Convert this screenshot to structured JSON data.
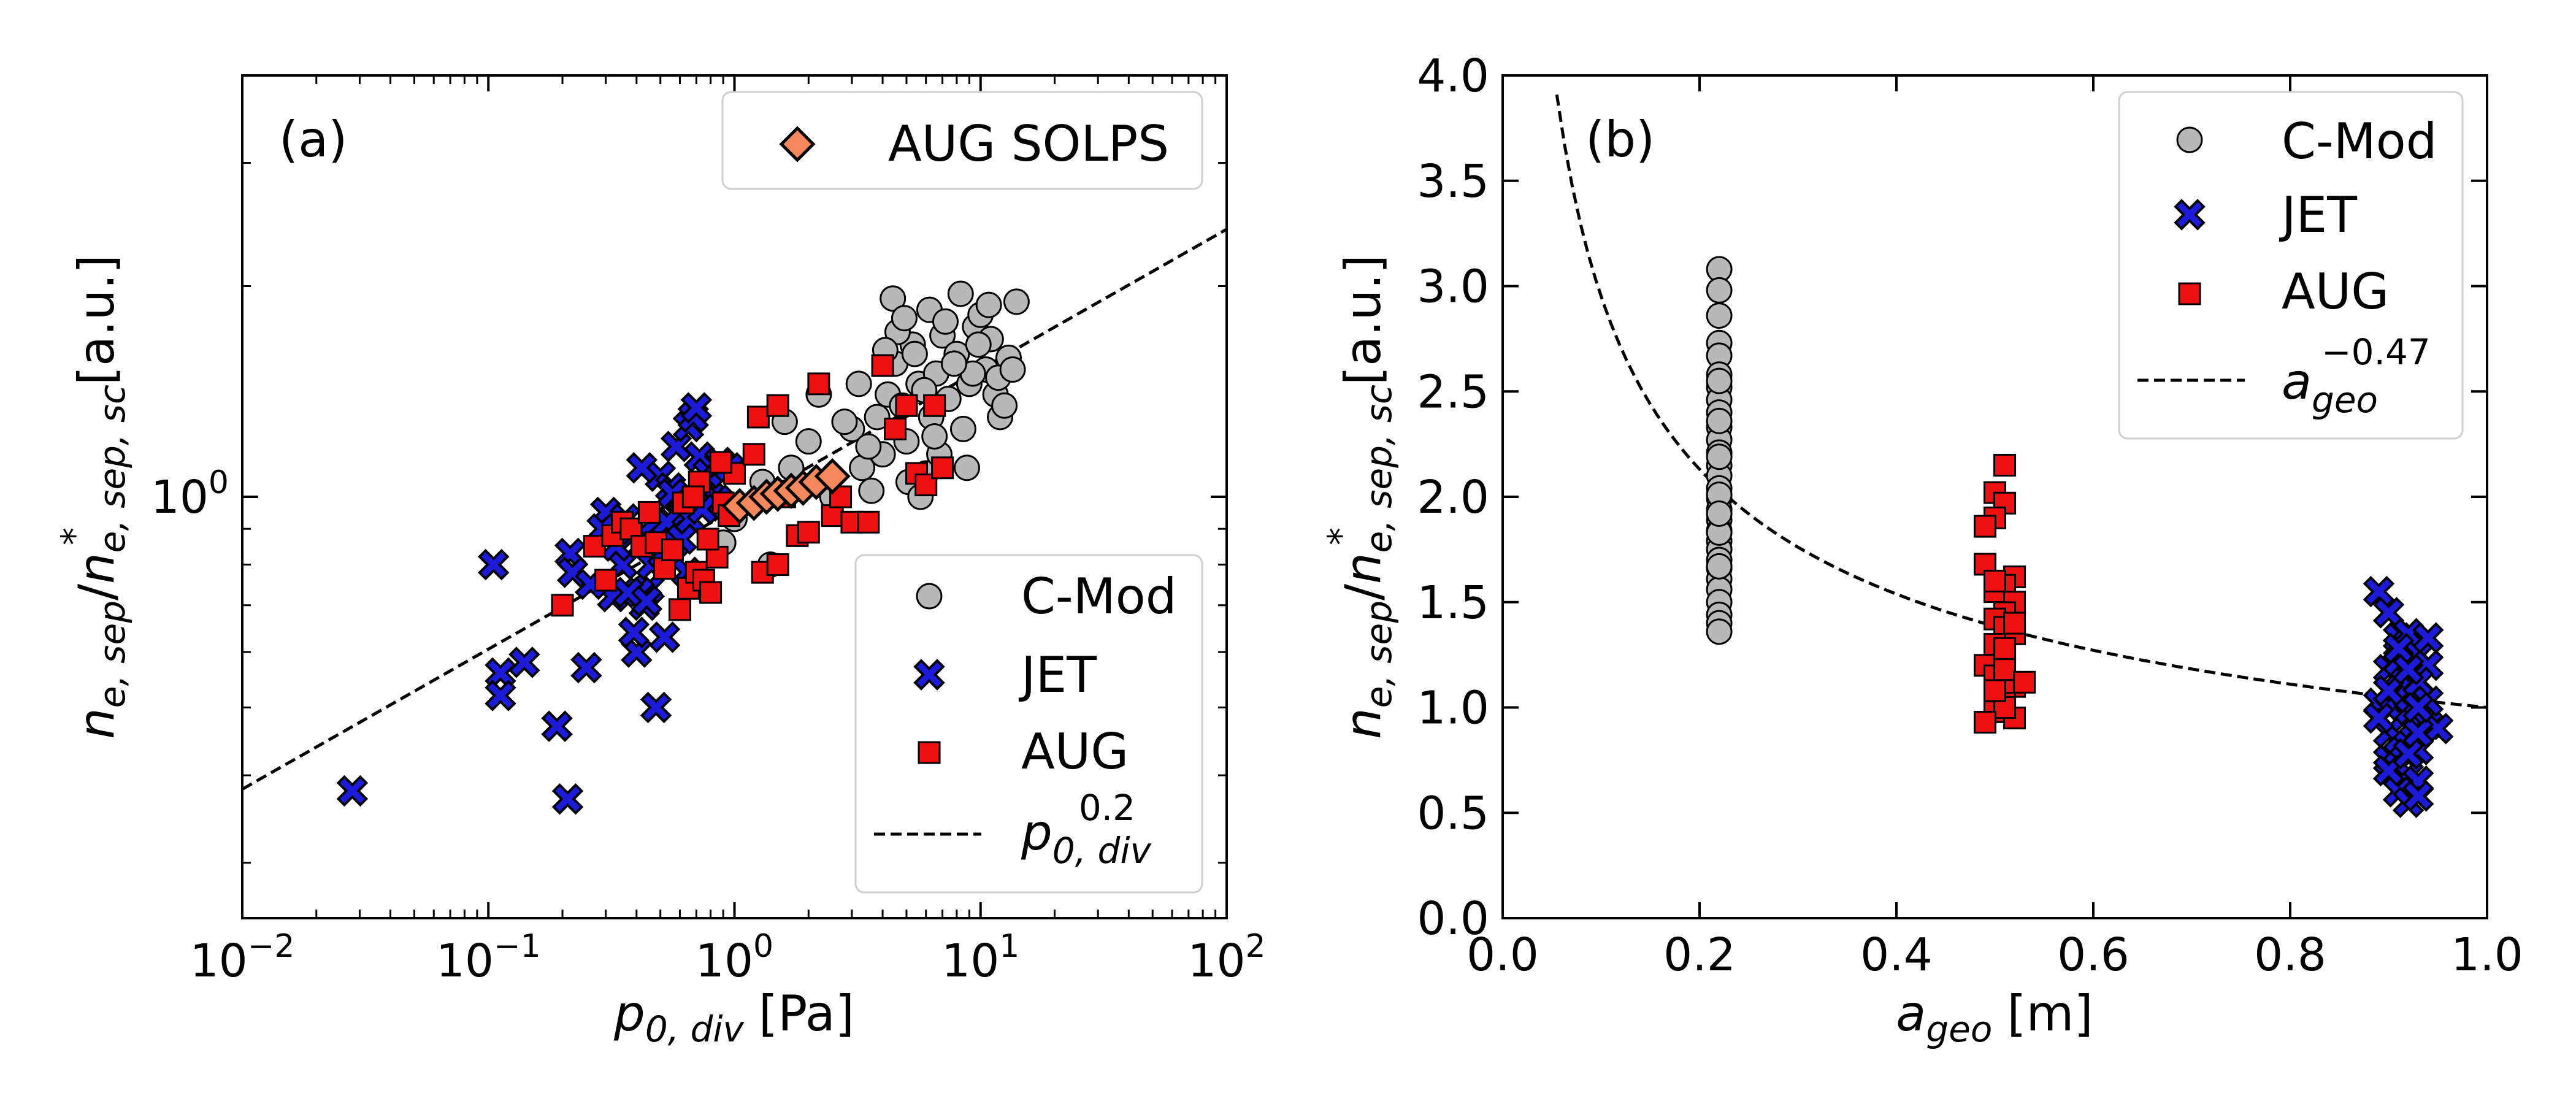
{
  "chart_data": [
    {
      "type": "scatter",
      "panel_label": "(a)",
      "xscale": "log",
      "yscale": "log",
      "xlim": [
        0.01,
        100
      ],
      "ylim": [
        0.25,
        4.0
      ],
      "xlabel": "p",
      "xlabel_sub": "0, div",
      "xlabel_unit": "[Pa]",
      "ylabel": "n",
      "ylabel_num_sub": "e, sep",
      "ylabel_den_sub": "e, sep, sc",
      "ylabel_unit": "[a.u.]",
      "x_ticks": [
        {
          "value": 0.01,
          "base": "10",
          "exp": "−2"
        },
        {
          "value": 0.1,
          "base": "10",
          "exp": "−1"
        },
        {
          "value": 1,
          "base": "10",
          "exp": "0"
        },
        {
          "value": 10,
          "base": "10",
          "exp": "1"
        },
        {
          "value": 100,
          "base": "10",
          "exp": "2"
        }
      ],
      "y_ticks": [
        {
          "value": 1.0,
          "base": "10",
          "exp": "0"
        }
      ],
      "legend_top": {
        "position": "top-right",
        "entries": [
          {
            "label": "AUG SOLPS",
            "marker": "diamond",
            "color": "#f4875c"
          }
        ]
      },
      "legend_bottom": {
        "position": "bottom-right",
        "entries": [
          {
            "label": "C-Mod",
            "marker": "circle",
            "color": "#b8b8b8"
          },
          {
            "label": "JET",
            "marker": "x",
            "color": "#1b1bd8"
          },
          {
            "label": "AUG",
            "marker": "square",
            "color": "#ee1111"
          },
          {
            "label": "p",
            "label_sub": "0, div",
            "label_sup": "0.2",
            "marker": "dashed"
          }
        ]
      },
      "fit_line": {
        "label": "p_0,div^0.2",
        "exponent": 0.2,
        "coef": 0.96,
        "x_range": [
          0.01,
          100
        ]
      },
      "series": [
        {
          "name": "C-Mod",
          "marker": "circle",
          "color": "#b8b8b8",
          "x": [
            1.0,
            1.3,
            1.6,
            2.0,
            2.5,
            3.0,
            3.3,
            3.6,
            4.0,
            4.2,
            4.5,
            4.8,
            5.0,
            5.3,
            5.6,
            6.0,
            6.3,
            6.6,
            7.0,
            7.4,
            8.0,
            8.5,
            9.0,
            9.5,
            10.0,
            10.5,
            11.0,
            11.5,
            12.0,
            13.0,
            14.0,
            4.4,
            5.4,
            6.2,
            7.2,
            8.3,
            9.3,
            3.8,
            4.6,
            5.9,
            6.8,
            7.8,
            10.8,
            12.5,
            3.2,
            5.1,
            6.5,
            8.8,
            1.7,
            2.2,
            2.8,
            3.5,
            4.1,
            4.9,
            5.7,
            9.8,
            11.8,
            13.5,
            0.9,
            1.4
          ],
          "y": [
            0.93,
            1.05,
            1.28,
            1.2,
            1.0,
            1.25,
            1.1,
            1.02,
            1.15,
            1.4,
            1.55,
            1.35,
            1.2,
            1.65,
            1.45,
            1.08,
            1.3,
            1.5,
            1.7,
            1.38,
            1.6,
            1.25,
            1.45,
            1.75,
            1.82,
            1.52,
            1.68,
            1.4,
            1.3,
            1.58,
            1.9,
            1.92,
            1.6,
            1.85,
            1.78,
            1.95,
            1.5,
            1.3,
            1.72,
            1.42,
            1.15,
            1.55,
            1.88,
            1.35,
            1.45,
            1.05,
            1.22,
            1.1,
            1.1,
            1.4,
            1.28,
            1.18,
            1.62,
            1.8,
            1.0,
            1.65,
            1.48,
            1.52,
            0.86,
            0.8
          ]
        },
        {
          "name": "JET",
          "marker": "x",
          "color": "#1b1bd8",
          "x": [
            0.028,
            0.105,
            0.112,
            0.112,
            0.14,
            0.19,
            0.21,
            0.215,
            0.25,
            0.3,
            0.32,
            0.35,
            0.38,
            0.4,
            0.43,
            0.45,
            0.47,
            0.5,
            0.55,
            0.58,
            0.6,
            0.62,
            0.65,
            0.68,
            0.7,
            0.72,
            0.75,
            0.8,
            0.85,
            0.9,
            0.95,
            0.33,
            0.36,
            0.42,
            0.48,
            0.52,
            0.57,
            0.64,
            0.69,
            0.78,
            0.41,
            0.46,
            0.53,
            0.61,
            0.22,
            0.26,
            0.29,
            0.37,
            0.44,
            0.56,
            0.66,
            0.74,
            0.87,
            0.39,
            0.51
          ],
          "y": [
            0.38,
            0.8,
            0.56,
            0.52,
            0.58,
            0.47,
            0.37,
            0.83,
            0.57,
            0.95,
            0.72,
            0.8,
            0.88,
            0.6,
            0.7,
            0.74,
            0.92,
            1.07,
            1.03,
            1.18,
            0.94,
            0.99,
            1.26,
            1.3,
            1.34,
            1.14,
            1.03,
            1.0,
            0.99,
            0.97,
            1.1,
            0.85,
            0.93,
            1.1,
            0.5,
            0.63,
            0.86,
            0.78,
            0.74,
            1.08,
            0.73,
            0.8,
            0.92,
            0.87,
            0.78,
            0.75,
            0.9,
            0.73,
            0.71,
            1.01,
            0.93,
            0.96,
            1.12,
            0.64,
            0.83
          ]
        },
        {
          "name": "AUG",
          "marker": "square",
          "color": "#ee1111",
          "x": [
            0.2,
            0.27,
            0.3,
            0.32,
            0.35,
            0.38,
            0.42,
            0.45,
            0.48,
            0.52,
            0.56,
            0.6,
            0.65,
            0.7,
            0.75,
            0.8,
            0.85,
            0.9,
            0.95,
            1.0,
            1.2,
            1.3,
            1.5,
            1.6,
            1.8,
            2.0,
            2.5,
            3.0,
            3.5,
            4.0,
            4.5,
            5.0,
            5.5,
            6.0,
            6.5,
            7.0,
            0.62,
            0.72,
            0.88,
            1.25,
            1.5,
            2.2,
            2.7,
            0.68,
            0.78
          ],
          "y": [
            0.7,
            0.85,
            0.76,
            0.88,
            0.92,
            0.9,
            0.85,
            0.95,
            0.86,
            0.79,
            0.84,
            0.69,
            0.74,
            0.78,
            0.76,
            0.73,
            0.82,
            0.98,
            0.94,
            1.08,
            1.15,
            0.78,
            0.8,
            1.0,
            0.88,
            0.89,
            0.94,
            0.92,
            0.92,
            1.54,
            1.25,
            1.35,
            1.08,
            1.04,
            1.35,
            1.1,
            0.98,
            1.05,
            1.12,
            1.3,
            1.35,
            1.45,
            1.0,
            1.0,
            0.87
          ]
        },
        {
          "name": "AUG SOLPS",
          "marker": "diamond",
          "color": "#f4875c",
          "x": [
            1.05,
            1.2,
            1.35,
            1.5,
            1.7,
            1.9,
            2.15,
            2.5
          ],
          "y": [
            0.97,
            0.98,
            1.0,
            1.01,
            1.02,
            1.03,
            1.05,
            1.07
          ]
        }
      ]
    },
    {
      "type": "scatter",
      "panel_label": "(b)",
      "xscale": "linear",
      "yscale": "linear",
      "xlim": [
        0.0,
        1.0
      ],
      "ylim": [
        0.0,
        4.0
      ],
      "xlabel": "a",
      "xlabel_sub": "geo",
      "xlabel_unit": "[m]",
      "ylabel": "n",
      "ylabel_num_sub": "e, sep",
      "ylabel_den_sub": "e, sep, sc",
      "ylabel_unit": "[a.u.]",
      "x_ticks": [
        "0.0",
        "0.2",
        "0.4",
        "0.6",
        "0.8",
        "1.0"
      ],
      "y_ticks": [
        "0.0",
        "0.5",
        "1.0",
        "1.5",
        "2.0",
        "2.5",
        "3.0",
        "3.5",
        "4.0"
      ],
      "legend": {
        "position": "top-right",
        "entries": [
          {
            "label": "C-Mod",
            "marker": "circle",
            "color": "#b8b8b8"
          },
          {
            "label": "JET",
            "marker": "x",
            "color": "#1b1bd8"
          },
          {
            "label": "AUG",
            "marker": "square",
            "color": "#ee1111"
          },
          {
            "label": "a",
            "label_sub": "geo",
            "label_sup": "−0.47",
            "marker": "dashed"
          }
        ]
      },
      "fit_line": {
        "label": "a_geo^-0.47",
        "exponent": -0.47,
        "coef": 1.0,
        "x_range": [
          0.055,
          1.0
        ]
      },
      "series": [
        {
          "name": "C-Mod",
          "marker": "circle",
          "color": "#b8b8b8",
          "x": [
            0.22,
            0.22,
            0.22,
            0.22,
            0.22,
            0.22,
            0.22,
            0.22,
            0.22,
            0.22,
            0.22,
            0.22,
            0.22,
            0.22,
            0.22,
            0.22,
            0.22,
            0.22,
            0.22,
            0.22,
            0.22,
            0.22,
            0.22,
            0.22,
            0.22,
            0.22,
            0.22,
            0.22,
            0.22,
            0.22,
            0.22,
            0.22,
            0.22,
            0.22,
            0.22,
            0.22
          ],
          "y": [
            3.08,
            2.98,
            2.86,
            2.73,
            2.67,
            2.58,
            2.52,
            2.46,
            2.4,
            2.33,
            2.27,
            2.21,
            2.15,
            2.1,
            2.04,
            1.99,
            1.94,
            1.89,
            1.84,
            1.79,
            1.75,
            1.7,
            1.66,
            1.61,
            1.56,
            1.5,
            1.44,
            1.4,
            1.36,
            2.55,
            2.36,
            2.19,
            2.01,
            1.83,
            1.67,
            1.92
          ]
        },
        {
          "name": "JET",
          "marker": "x",
          "color": "#1b1bd8",
          "x": [
            0.89,
            0.9,
            0.91,
            0.92,
            0.93,
            0.94,
            0.9,
            0.91,
            0.92,
            0.93,
            0.89,
            0.9,
            0.92,
            0.93,
            0.94,
            0.95,
            0.9,
            0.91,
            0.92,
            0.93,
            0.9,
            0.91,
            0.92,
            0.93,
            0.89,
            0.9,
            0.91,
            0.92,
            0.93,
            0.94,
            0.91,
            0.92,
            0.93,
            0.9,
            0.92,
            0.93,
            0.91,
            0.92,
            0.93,
            0.94
          ],
          "y": [
            1.55,
            1.45,
            1.33,
            1.3,
            1.25,
            1.2,
            1.18,
            1.15,
            1.1,
            1.05,
            1.02,
            1.0,
            0.98,
            0.95,
            0.92,
            0.9,
            0.88,
            0.85,
            0.82,
            0.8,
            0.75,
            0.72,
            0.68,
            0.65,
            0.95,
            1.08,
            1.22,
            1.35,
            1.12,
            1.03,
            0.6,
            0.55,
            0.58,
            0.7,
            0.78,
            0.88,
            1.28,
            1.18,
            1.0,
            1.33
          ]
        },
        {
          "name": "AUG",
          "marker": "square",
          "color": "#ee1111",
          "x": [
            0.51,
            0.5,
            0.51,
            0.5,
            0.49,
            0.52,
            0.51,
            0.5,
            0.52,
            0.51,
            0.49,
            0.5,
            0.51,
            0.52,
            0.5,
            0.51,
            0.49,
            0.5,
            0.51,
            0.52,
            0.5,
            0.51,
            0.5,
            0.52,
            0.51,
            0.49,
            0.5,
            0.51,
            0.53,
            0.5,
            0.52,
            0.51
          ],
          "y": [
            2.15,
            2.02,
            1.97,
            1.9,
            1.86,
            1.62,
            1.58,
            1.55,
            1.5,
            1.45,
            1.68,
            1.42,
            1.38,
            1.35,
            1.3,
            1.25,
            1.2,
            1.15,
            1.12,
            1.1,
            1.05,
            1.02,
            0.98,
            0.95,
            1.0,
            0.93,
            1.08,
            1.18,
            1.12,
            1.6,
            1.4,
            1.28
          ]
        }
      ]
    }
  ]
}
